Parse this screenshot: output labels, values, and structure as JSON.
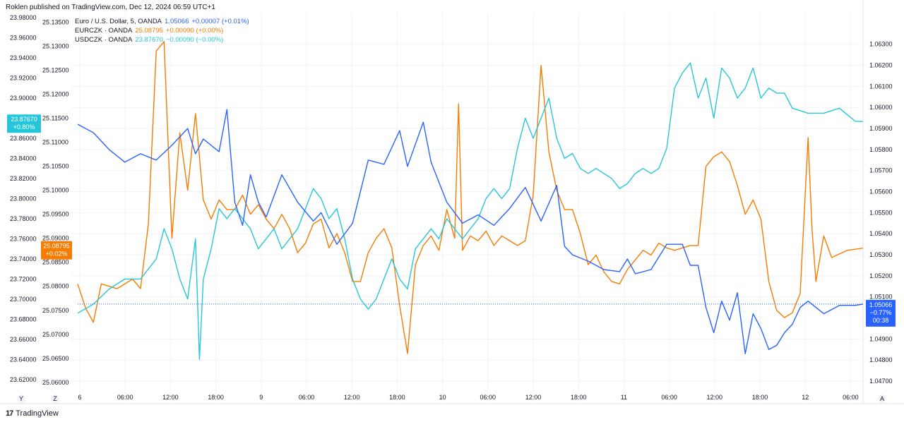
{
  "header": {
    "text": "Roklen published on TradingView.com, Dec 12, 2024 06:59 UTC+1"
  },
  "legend": [
    {
      "name": "Euro / U.S. Dollar, 5, OANDA",
      "value": "1.05066",
      "change": "+0.00007 (+0.01%)",
      "color": "#2962ff"
    },
    {
      "name": "EURCZK · OANDA",
      "value": "25.08795",
      "change": "+0.00090 (+0.00%)",
      "color": "#f57c00"
    },
    {
      "name": "USDCZK · OANDA",
      "value": "23.87670",
      "change": "−0.00090 (−0.00%)",
      "color": "#26c6da"
    }
  ],
  "badges": {
    "usdczk": {
      "value": "23.87670",
      "pct": "+0.80%",
      "color": "#26c6da"
    },
    "eurczk": {
      "value": "25.08795",
      "pct": "+0.02%",
      "color": "#f57c00"
    },
    "eurusd": {
      "value": "1.05066",
      "pct": "−0.77%",
      "time": "00:38",
      "color": "#2962ff"
    }
  },
  "footer": {
    "logo": "17",
    "brand": "TradingView"
  },
  "axis_buttons": [
    "Y",
    "Z",
    "A"
  ],
  "chart_data": {
    "type": "line",
    "x_tick_labels": [
      "6",
      "06:00",
      "12:00",
      "18:00",
      "9",
      "06:00",
      "12:00",
      "18:00",
      "10",
      "06:00",
      "12:00",
      "18:00",
      "11",
      "06:00",
      "12:00",
      "18:00",
      "12",
      "06:00"
    ],
    "axes": {
      "usdczk_left": {
        "range": [
          23.61,
          23.985
        ],
        "ticks": [
          "23.98000",
          "23.96000",
          "23.94000",
          "23.92000",
          "23.90000",
          "23.88000",
          "23.86000",
          "23.84000",
          "23.82000",
          "23.80000",
          "23.78000",
          "23.76000",
          "23.74000",
          "23.72000",
          "23.70000",
          "23.68000",
          "23.66000",
          "23.64000",
          "23.62000"
        ]
      },
      "eurczk_left": {
        "range": [
          25.0585,
          25.137
        ],
        "ticks": [
          "25.13500",
          "25.13000",
          "25.12500",
          "25.12000",
          "25.11500",
          "25.11000",
          "25.10500",
          "25.10000",
          "25.09500",
          "25.09000",
          "25.08500",
          "25.08000",
          "25.07500",
          "25.07000",
          "25.06500",
          "25.06000"
        ]
      },
      "eurusd_right": {
        "range": [
          1.0466,
          1.0645
        ],
        "ticks": [
          "1.06300",
          "1.06200",
          "1.06100",
          "1.06000",
          "1.05900",
          "1.05800",
          "1.05700",
          "1.05600",
          "1.05500",
          "1.05400",
          "1.05300",
          "1.05200",
          "1.05100",
          "1.04900",
          "1.04800",
          "1.04700"
        ]
      }
    },
    "series": [
      {
        "name": "Euro / U.S. Dollar, 5, OANDA",
        "axis": "eurusd_right",
        "color": "#2962ff",
        "values": [
          [
            0,
            1.0592
          ],
          [
            0.02,
            1.0588
          ],
          [
            0.04,
            1.058
          ],
          [
            0.06,
            1.0574
          ],
          [
            0.08,
            1.0578
          ],
          [
            0.1,
            1.0575
          ],
          [
            0.12,
            1.0582
          ],
          [
            0.14,
            1.059
          ],
          [
            0.15,
            1.0578
          ],
          [
            0.16,
            1.0585
          ],
          [
            0.18,
            1.0579
          ],
          [
            0.19,
            1.0599
          ],
          [
            0.2,
            1.0555
          ],
          [
            0.21,
            1.0544
          ],
          [
            0.22,
            1.0568
          ],
          [
            0.23,
            1.0555
          ],
          [
            0.24,
            1.0548
          ],
          [
            0.26,
            1.0568
          ],
          [
            0.28,
            1.0555
          ],
          [
            0.3,
            1.0546
          ],
          [
            0.31,
            1.055
          ],
          [
            0.33,
            1.0535
          ],
          [
            0.35,
            1.0545
          ],
          [
            0.37,
            1.0575
          ],
          [
            0.39,
            1.0573
          ],
          [
            0.41,
            1.0589
          ],
          [
            0.42,
            1.0572
          ],
          [
            0.44,
            1.0593
          ],
          [
            0.45,
            1.0574
          ],
          [
            0.47,
            1.0555
          ],
          [
            0.49,
            1.0545
          ],
          [
            0.51,
            1.0549
          ],
          [
            0.53,
            1.0544
          ],
          [
            0.55,
            1.0552
          ],
          [
            0.57,
            1.0562
          ],
          [
            0.59,
            1.0546
          ],
          [
            0.61,
            1.0563
          ],
          [
            0.62,
            1.0534
          ],
          [
            0.63,
            1.053
          ],
          [
            0.65,
            1.0527
          ],
          [
            0.67,
            1.0523
          ],
          [
            0.69,
            1.0522
          ],
          [
            0.7,
            1.0528
          ],
          [
            0.71,
            1.0521
          ],
          [
            0.73,
            1.0523
          ],
          [
            0.75,
            1.0535
          ],
          [
            0.77,
            1.0535
          ],
          [
            0.78,
            1.0525
          ],
          [
            0.79,
            1.0525
          ],
          [
            0.8,
            1.0505
          ],
          [
            0.81,
            1.0493
          ],
          [
            0.82,
            1.0508
          ],
          [
            0.83,
            1.0499
          ],
          [
            0.84,
            1.0512
          ],
          [
            0.85,
            1.0483
          ],
          [
            0.86,
            1.0502
          ],
          [
            0.87,
            1.0495
          ],
          [
            0.88,
            1.0485
          ],
          [
            0.89,
            1.0487
          ],
          [
            0.9,
            1.0493
          ],
          [
            0.91,
            1.0497
          ],
          [
            0.92,
            1.0505
          ],
          [
            0.93,
            1.0508
          ],
          [
            0.95,
            1.0502
          ],
          [
            0.97,
            1.0506
          ],
          [
            0.99,
            1.0506
          ],
          [
            1.0,
            1.05066
          ]
        ]
      },
      {
        "name": "EURCZK · OANDA",
        "axis": "eurczk_left",
        "color": "#f57c00",
        "values": [
          [
            0,
            25.0805
          ],
          [
            0.01,
            25.0755
          ],
          [
            0.02,
            25.0725
          ],
          [
            0.03,
            25.0805
          ],
          [
            0.05,
            25.0795
          ],
          [
            0.07,
            25.0815
          ],
          [
            0.08,
            25.0795
          ],
          [
            0.09,
            25.093
          ],
          [
            0.1,
            25.129
          ],
          [
            0.11,
            25.131
          ],
          [
            0.12,
            25.09
          ],
          [
            0.13,
            25.112
          ],
          [
            0.14,
            25.1
          ],
          [
            0.15,
            25.116
          ],
          [
            0.16,
            25.098
          ],
          [
            0.17,
            25.094
          ],
          [
            0.18,
            25.098
          ],
          [
            0.19,
            25.096
          ],
          [
            0.2,
            25.096
          ],
          [
            0.21,
            25.099
          ],
          [
            0.22,
            25.095
          ],
          [
            0.23,
            25.097
          ],
          [
            0.24,
            25.094
          ],
          [
            0.25,
            25.092
          ],
          [
            0.26,
            25.095
          ],
          [
            0.27,
            25.092
          ],
          [
            0.28,
            25.087
          ],
          [
            0.29,
            25.089
          ],
          [
            0.3,
            25.093
          ],
          [
            0.31,
            25.094
          ],
          [
            0.32,
            25.088
          ],
          [
            0.33,
            25.091
          ],
          [
            0.34,
            25.087
          ],
          [
            0.35,
            25.081
          ],
          [
            0.36,
            25.081
          ],
          [
            0.37,
            25.087
          ],
          [
            0.38,
            25.09
          ],
          [
            0.39,
            25.092
          ],
          [
            0.4,
            25.088
          ],
          [
            0.41,
            25.076
          ],
          [
            0.42,
            25.066
          ],
          [
            0.43,
            25.0845
          ],
          [
            0.44,
            25.0885
          ],
          [
            0.45,
            25.0905
          ],
          [
            0.46,
            25.0875
          ],
          [
            0.47,
            25.096
          ],
          [
            0.48,
            25.09
          ],
          [
            0.485,
            25.118
          ],
          [
            0.49,
            25.0875
          ],
          [
            0.5,
            25.0905
          ],
          [
            0.51,
            25.0895
          ],
          [
            0.52,
            25.0915
          ],
          [
            0.53,
            25.0885
          ],
          [
            0.54,
            25.0905
          ],
          [
            0.55,
            25.0895
          ],
          [
            0.56,
            25.0885
          ],
          [
            0.57,
            25.0895
          ],
          [
            0.58,
            25.099
          ],
          [
            0.59,
            25.126
          ],
          [
            0.6,
            25.108
          ],
          [
            0.61,
            25.1
          ],
          [
            0.62,
            25.096
          ],
          [
            0.63,
            25.096
          ],
          [
            0.64,
            25.091
          ],
          [
            0.65,
            25.0845
          ],
          [
            0.66,
            25.0865
          ],
          [
            0.67,
            25.083
          ],
          [
            0.68,
            25.081
          ],
          [
            0.69,
            25.0805
          ],
          [
            0.7,
            25.0835
          ],
          [
            0.71,
            25.0855
          ],
          [
            0.72,
            25.0875
          ],
          [
            0.73,
            25.0865
          ],
          [
            0.74,
            25.089
          ],
          [
            0.75,
            25.088
          ],
          [
            0.76,
            25.0875
          ],
          [
            0.77,
            25.088
          ],
          [
            0.78,
            25.0885
          ],
          [
            0.79,
            25.0885
          ],
          [
            0.8,
            25.105
          ],
          [
            0.81,
            25.107
          ],
          [
            0.82,
            25.108
          ],
          [
            0.83,
            25.106
          ],
          [
            0.84,
            25.101
          ],
          [
            0.85,
            25.095
          ],
          [
            0.86,
            25.098
          ],
          [
            0.87,
            25.094
          ],
          [
            0.88,
            25.081
          ],
          [
            0.89,
            25.075
          ],
          [
            0.9,
            25.0735
          ],
          [
            0.91,
            25.0745
          ],
          [
            0.92,
            25.0785
          ],
          [
            0.93,
            25.111
          ],
          [
            0.935,
            25.092
          ],
          [
            0.94,
            25.081
          ],
          [
            0.95,
            25.0905
          ],
          [
            0.96,
            25.086
          ],
          [
            0.98,
            25.0875
          ],
          [
            1.0,
            25.08795
          ]
        ]
      },
      {
        "name": "USDCZK · OANDA",
        "axis": "usdczk_left",
        "color": "#26c6da",
        "values": [
          [
            0,
            23.686
          ],
          [
            0.02,
            23.695
          ],
          [
            0.04,
            23.71
          ],
          [
            0.06,
            23.72
          ],
          [
            0.08,
            23.72
          ],
          [
            0.1,
            23.74
          ],
          [
            0.11,
            23.77
          ],
          [
            0.12,
            23.75
          ],
          [
            0.13,
            23.72
          ],
          [
            0.14,
            23.7
          ],
          [
            0.15,
            23.76
          ],
          [
            0.155,
            23.64
          ],
          [
            0.16,
            23.72
          ],
          [
            0.17,
            23.75
          ],
          [
            0.18,
            23.79
          ],
          [
            0.19,
            23.78
          ],
          [
            0.2,
            23.79
          ],
          [
            0.21,
            23.78
          ],
          [
            0.22,
            23.77
          ],
          [
            0.23,
            23.75
          ],
          [
            0.24,
            23.76
          ],
          [
            0.25,
            23.77
          ],
          [
            0.26,
            23.75
          ],
          [
            0.27,
            23.76
          ],
          [
            0.28,
            23.77
          ],
          [
            0.29,
            23.79
          ],
          [
            0.3,
            23.81
          ],
          [
            0.31,
            23.8
          ],
          [
            0.32,
            23.78
          ],
          [
            0.33,
            23.79
          ],
          [
            0.34,
            23.76
          ],
          [
            0.35,
            23.72
          ],
          [
            0.36,
            23.7
          ],
          [
            0.37,
            23.69
          ],
          [
            0.38,
            23.7
          ],
          [
            0.39,
            23.72
          ],
          [
            0.4,
            23.74
          ],
          [
            0.41,
            23.72
          ],
          [
            0.42,
            23.71
          ],
          [
            0.43,
            23.75
          ],
          [
            0.44,
            23.76
          ],
          [
            0.45,
            23.77
          ],
          [
            0.46,
            23.76
          ],
          [
            0.47,
            23.78
          ],
          [
            0.48,
            23.77
          ],
          [
            0.49,
            23.76
          ],
          [
            0.5,
            23.77
          ],
          [
            0.51,
            23.78
          ],
          [
            0.52,
            23.8
          ],
          [
            0.53,
            23.81
          ],
          [
            0.54,
            23.8
          ],
          [
            0.55,
            23.81
          ],
          [
            0.56,
            23.85
          ],
          [
            0.57,
            23.88
          ],
          [
            0.58,
            23.86
          ],
          [
            0.59,
            23.88
          ],
          [
            0.6,
            23.9
          ],
          [
            0.61,
            23.86
          ],
          [
            0.62,
            23.84
          ],
          [
            0.63,
            23.845
          ],
          [
            0.64,
            23.83
          ],
          [
            0.65,
            23.825
          ],
          [
            0.66,
            23.83
          ],
          [
            0.67,
            23.825
          ],
          [
            0.68,
            23.82
          ],
          [
            0.69,
            23.81
          ],
          [
            0.7,
            23.815
          ],
          [
            0.71,
            23.825
          ],
          [
            0.72,
            23.83
          ],
          [
            0.73,
            23.825
          ],
          [
            0.74,
            23.83
          ],
          [
            0.75,
            23.85
          ],
          [
            0.76,
            23.91
          ],
          [
            0.77,
            23.925
          ],
          [
            0.78,
            23.935
          ],
          [
            0.79,
            23.9
          ],
          [
            0.8,
            23.92
          ],
          [
            0.81,
            23.88
          ],
          [
            0.82,
            23.93
          ],
          [
            0.83,
            23.92
          ],
          [
            0.84,
            23.9
          ],
          [
            0.85,
            23.91
          ],
          [
            0.86,
            23.93
          ],
          [
            0.87,
            23.9
          ],
          [
            0.88,
            23.91
          ],
          [
            0.89,
            23.905
          ],
          [
            0.9,
            23.905
          ],
          [
            0.91,
            23.89
          ],
          [
            0.93,
            23.885
          ],
          [
            0.95,
            23.885
          ],
          [
            0.97,
            23.89
          ],
          [
            0.99,
            23.877
          ],
          [
            1.0,
            23.8767
          ]
        ]
      }
    ],
    "grid": true
  }
}
